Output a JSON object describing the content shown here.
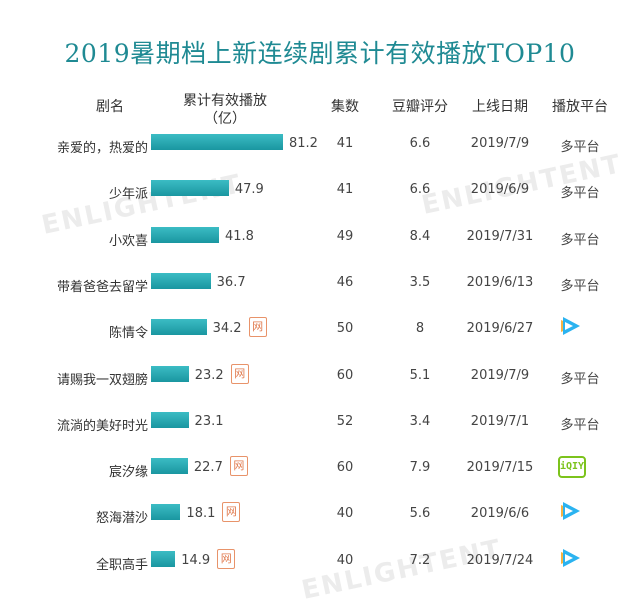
{
  "chart_data": {
    "type": "table",
    "title": "2019暑期档上新连续剧累计有效播放TOP10",
    "columns": [
      "剧名",
      "累计有效播放\n（亿）",
      "集数",
      "豆瓣评分",
      "上线日期",
      "播放平台"
    ],
    "rows": [
      {
        "name": "亲爱的，热爱的",
        "value": 81.2,
        "value_label": "81.2",
        "net": false,
        "episodes": "41",
        "douban": "6.6",
        "date": "2019/7/9",
        "platform": "多平台",
        "platform_icon": "text"
      },
      {
        "name": "少年派",
        "value": 47.9,
        "value_label": "47.9",
        "net": false,
        "episodes": "41",
        "douban": "6.6",
        "date": "2019/6/9",
        "platform": "多平台",
        "platform_icon": "text"
      },
      {
        "name": "小欢喜",
        "value": 41.8,
        "value_label": "41.8",
        "net": false,
        "episodes": "49",
        "douban": "8.4",
        "date": "2019/7/31",
        "platform": "多平台",
        "platform_icon": "text"
      },
      {
        "name": "带着爸爸去留学",
        "value": 36.7,
        "value_label": "36.7",
        "net": false,
        "episodes": "46",
        "douban": "3.5",
        "date": "2019/6/13",
        "platform": "多平台",
        "platform_icon": "text"
      },
      {
        "name": "陈情令",
        "value": 34.2,
        "value_label": "34.2",
        "net": true,
        "episodes": "50",
        "douban": "8",
        "date": "2019/6/27",
        "platform": "",
        "platform_icon": "tencent-video"
      },
      {
        "name": "请赐我一双翅膀",
        "value": 23.2,
        "value_label": "23.2",
        "net": true,
        "episodes": "60",
        "douban": "5.1",
        "date": "2019/7/9",
        "platform": "多平台",
        "platform_icon": "text"
      },
      {
        "name": "流淌的美好时光",
        "value": 23.1,
        "value_label": "23.1",
        "net": false,
        "episodes": "52",
        "douban": "3.4",
        "date": "2019/7/1",
        "platform": "多平台",
        "platform_icon": "text"
      },
      {
        "name": "宸汐缘",
        "value": 22.7,
        "value_label": "22.7",
        "net": true,
        "episodes": "60",
        "douban": "7.9",
        "date": "2019/7/15",
        "platform": "",
        "platform_icon": "iqiyi"
      },
      {
        "name": "怒海潜沙",
        "value": 18.1,
        "value_label": "18.1",
        "net": true,
        "episodes": "40",
        "douban": "5.6",
        "date": "2019/6/6",
        "platform": "",
        "platform_icon": "tencent-video"
      },
      {
        "name": "全职高手",
        "value": 14.9,
        "value_label": "14.9",
        "net": true,
        "episodes": "40",
        "douban": "7.2",
        "date": "2019/7/24",
        "platform": "",
        "platform_icon": "tencent-video"
      }
    ],
    "net_badge": "网",
    "iqiyi_label": "iQIY",
    "xlim": [
      0,
      81.2
    ]
  },
  "watermark": "ENLIGHTENT",
  "colors": {
    "title": "#1f8a93",
    "bar": "#2aaab3",
    "net": "#e07a4e",
    "tencent": "#20a0e8",
    "iqiyi": "#7cc31c"
  }
}
